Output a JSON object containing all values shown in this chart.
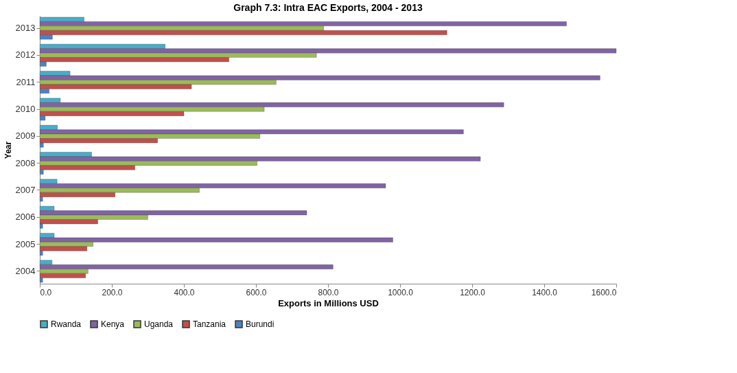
{
  "chart_data": {
    "type": "bar",
    "orientation": "horizontal",
    "title": "Graph 7.3: Intra EAC Exports, 2004 - 2013",
    "xlabel": "Exports in Millions USD",
    "ylabel": "Year",
    "categories": [
      "2013",
      "2012",
      "2011",
      "2010",
      "2009",
      "2008",
      "2007",
      "2006",
      "2005",
      "2004"
    ],
    "series": [
      {
        "name": "Rwanda",
        "color": "#4bacc6",
        "values": [
          123,
          348,
          84,
          57,
          49,
          144,
          48,
          40,
          40,
          34
        ]
      },
      {
        "name": "Kenya",
        "color": "#8064a2",
        "values": [
          1462,
          1600,
          1555,
          1288,
          1176,
          1223,
          960,
          741,
          980,
          814
        ]
      },
      {
        "name": "Uganda",
        "color": "#9bbb59",
        "values": [
          788,
          768,
          656,
          623,
          611,
          603,
          443,
          300,
          148,
          134
        ]
      },
      {
        "name": "Tanzania",
        "color": "#c0504d",
        "values": [
          1130,
          525,
          421,
          400,
          327,
          264,
          209,
          161,
          131,
          127
        ]
      },
      {
        "name": "Burundi",
        "color": "#4f81bd",
        "values": [
          35,
          18,
          26,
          15,
          10,
          10,
          8,
          8,
          8,
          8
        ]
      }
    ],
    "xlim": [
      0,
      1600
    ],
    "xticks": [
      {
        "value": 0,
        "label": "0.0"
      },
      {
        "value": 200,
        "label": "200.0"
      },
      {
        "value": 400,
        "label": "400.0"
      },
      {
        "value": 600,
        "label": "600.0"
      },
      {
        "value": 800,
        "label": "800.0"
      },
      {
        "value": 1000,
        "label": "1000.0"
      },
      {
        "value": 1200,
        "label": "1200.0"
      },
      {
        "value": 1400,
        "label": "1400.0"
      },
      {
        "value": 1600,
        "label": "1600.0"
      }
    ],
    "grid": false,
    "legend": "bottom"
  }
}
